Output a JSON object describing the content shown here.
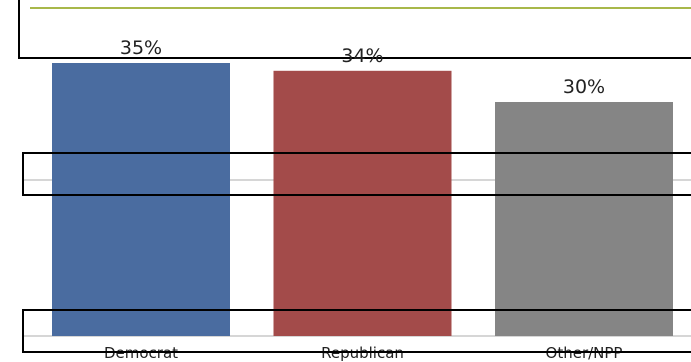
{
  "chart_data": {
    "type": "bar",
    "categories": [
      "Democrat",
      "Republican",
      "Other/NPP"
    ],
    "values": [
      35,
      34,
      30
    ],
    "data_labels": [
      "35%",
      "34%",
      "30%"
    ],
    "colors": [
      "#4a6ca0",
      "#a34b4a",
      "#858585"
    ],
    "ylim": [
      0,
      35
    ],
    "grid": true,
    "legend": "none"
  },
  "style": {
    "accent_line": "#a8b84a",
    "gridline": "#c8c8c8",
    "annotation_box_stroke": "#000000"
  }
}
